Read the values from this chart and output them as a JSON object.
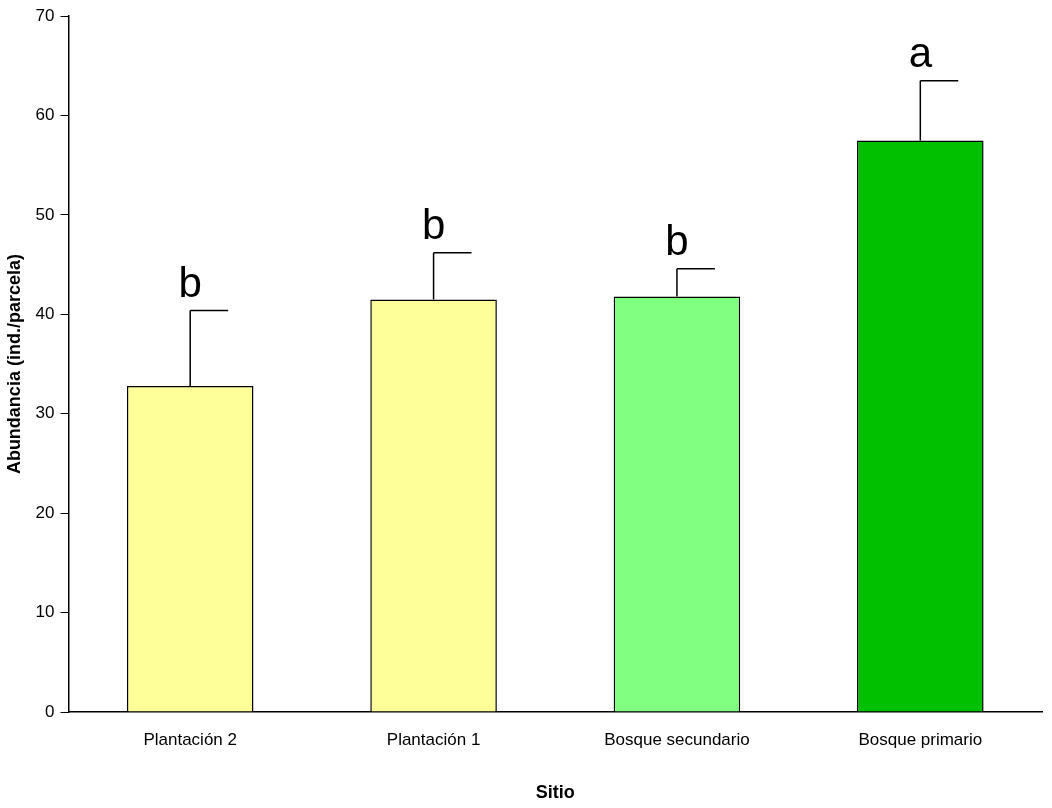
{
  "chart_data": {
    "type": "bar",
    "xlabel": "Sitio",
    "ylabel": "Abundancia (ind./parcela)",
    "categories": [
      "Plantación 2",
      "Plantación 1",
      "Bosque secundario",
      "Bosque primario"
    ],
    "values": [
      32.8,
      41.5,
      41.8,
      57.5
    ],
    "colors": [
      "#ffff99",
      "#ffff99",
      "#80ff80",
      "#00c000"
    ],
    "errors": [
      [
        32.8,
        40.4
      ],
      [
        41.5,
        46.2
      ],
      [
        41.8,
        44.6
      ],
      [
        57.5,
        63.5
      ]
    ],
    "ylim": [
      0,
      70
    ],
    "yticks": [
      0,
      10,
      20,
      30,
      40,
      50,
      60,
      70
    ],
    "annotations": [
      {
        "text": "b",
        "x": "Plantación 2",
        "y": 40.4
      },
      {
        "text": "b",
        "x": "Plantación 1",
        "y": 46.2
      },
      {
        "text": "b",
        "x": "Bosque secundario",
        "y": 44.6
      },
      {
        "text": "a",
        "x": "Bosque primario",
        "y": 63.5
      }
    ]
  }
}
